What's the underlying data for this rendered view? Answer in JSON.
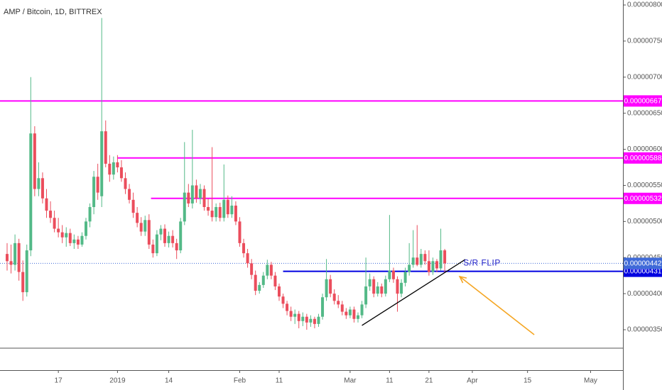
{
  "chart_data": {
    "type": "candlestick",
    "title": "AMP / Bitcoin, 1D, BITTREX",
    "up_color": "#53b987",
    "down_color": "#eb4d5c",
    "xlim": [
      -1.8,
      156.2
    ],
    "ylim": [
      2.94e-06,
      8.069e-06
    ],
    "xticks": [
      {
        "value": 13,
        "label": "17"
      },
      {
        "value": 28,
        "label": "2019"
      },
      {
        "value": 41,
        "label": "14"
      },
      {
        "value": 59,
        "label": "Feb"
      },
      {
        "value": 69,
        "label": "11"
      },
      {
        "value": 87,
        "label": "Mar"
      },
      {
        "value": 97,
        "label": "11"
      },
      {
        "value": 107,
        "label": "21"
      },
      {
        "value": 118,
        "label": "Apr"
      },
      {
        "value": 132,
        "label": "15"
      },
      {
        "value": 148,
        "label": "May"
      }
    ],
    "yticks": [
      {
        "value": 8e-06,
        "label": "0.00000800"
      },
      {
        "value": 7.5e-06,
        "label": "0.00000750"
      },
      {
        "value": 7e-06,
        "label": "0.00000700"
      },
      {
        "value": 6.5e-06,
        "label": "0.00000650"
      },
      {
        "value": 6e-06,
        "label": "0.00000600"
      },
      {
        "value": 5.5e-06,
        "label": "0.00000550"
      },
      {
        "value": 5e-06,
        "label": "0.00000500"
      },
      {
        "value": 4.5e-06,
        "label": "0.00000450"
      },
      {
        "value": 4e-06,
        "label": "0.00000400"
      },
      {
        "value": 3.5e-06,
        "label": "0.00000350"
      }
    ],
    "x": [
      0,
      1,
      2,
      3,
      4,
      5,
      6,
      7,
      8,
      9,
      10,
      11,
      12,
      13,
      14,
      15,
      16,
      17,
      18,
      19,
      20,
      21,
      22,
      23,
      24,
      25,
      26,
      27,
      28,
      29,
      30,
      31,
      32,
      33,
      34,
      35,
      36,
      37,
      38,
      39,
      40,
      41,
      42,
      43,
      44,
      45,
      46,
      47,
      48,
      49,
      50,
      51,
      52,
      53,
      54,
      55,
      56,
      57,
      58,
      59,
      60,
      61,
      62,
      63,
      64,
      65,
      66,
      67,
      68,
      69,
      70,
      71,
      72,
      73,
      74,
      75,
      76,
      77,
      78,
      79,
      80,
      81,
      82,
      83,
      84,
      85,
      86,
      87,
      88,
      89,
      90,
      91,
      92,
      93,
      94,
      95,
      96,
      97,
      98,
      99,
      100,
      101,
      102,
      103,
      104,
      105,
      106,
      107,
      108,
      109,
      110,
      111
    ],
    "open": [
      4.55e-06,
      4.45e-06,
      4.4e-06,
      4.7e-06,
      4.3e-06,
      4.02e-06,
      4.6e-06,
      6.22e-06,
      5.45e-06,
      5.6e-06,
      5.32e-06,
      5.15e-06,
      5.05e-06,
      4.9e-06,
      4.85e-06,
      4.78e-06,
      4.84e-06,
      4.7e-06,
      4.75e-06,
      4.68e-06,
      4.8e-06,
      5e-06,
      5.2e-06,
      5.62e-06,
      5.35e-06,
      6.25e-06,
      5.8e-06,
      5.65e-06,
      5.82e-06,
      5.75e-06,
      5.6e-06,
      5.45e-06,
      5.3e-06,
      5.12e-06,
      4.98e-06,
      4.86e-06,
      5.02e-06,
      4.68e-06,
      4.56e-06,
      4.82e-06,
      4.9e-06,
      4.7e-06,
      4.8e-06,
      4.7e-06,
      4.6e-06,
      5e-06,
      5.4e-06,
      5.25e-06,
      5.5e-06,
      5.32e-06,
      5.45e-06,
      5.2e-06,
      5.15e-06,
      5.06e-06,
      5.2e-06,
      5.05e-06,
      5.3e-06,
      5.1e-06,
      5.22e-06,
      5e-06,
      4.7e-06,
      4.56e-06,
      4.42e-06,
      4.26e-06,
      4.04e-06,
      4.12e-06,
      4.25e-06,
      4.4e-06,
      4.25e-06,
      4.1e-06,
      3.96e-06,
      3.86e-06,
      3.76e-06,
      3.68e-06,
      3.72e-06,
      3.62e-06,
      3.68e-06,
      3.6e-06,
      3.65e-06,
      3.58e-06,
      3.68e-06,
      3.95e-06,
      4.2e-06,
      4e-06,
      3.9e-06,
      3.85e-06,
      3.75e-06,
      3.7e-06,
      3.78e-06,
      3.65e-06,
      3.7e-06,
      3.85e-06,
      4.1e-06,
      4.2e-06,
      4e-06,
      4.1e-06,
      4e-06,
      4.2e-06,
      4.32e-06,
      4.2e-06,
      4e-06,
      4.15e-06,
      4.3e-06,
      4.4e-06,
      4.5e-06,
      4.4e-06,
      4.55e-06,
      4.45e-06,
      4.3e-06,
      4.45e-06,
      4.35e-06,
      4.6e-06
    ],
    "high": [
      4.7e-06,
      4.68e-06,
      4.82e-06,
      4.76e-06,
      4.46e-06,
      4.68e-06,
      7e-06,
      6.32e-06,
      5.82e-06,
      5.68e-06,
      5.45e-06,
      5.28e-06,
      5.15e-06,
      5.05e-06,
      4.95e-06,
      4.92e-06,
      4.9e-06,
      4.82e-06,
      4.8e-06,
      4.85e-06,
      5.05e-06,
      5.25e-06,
      5.7e-06,
      5.8e-06,
      7.82e-06,
      6.4e-06,
      5.92e-06,
      5.9e-06,
      5.92e-06,
      5.85e-06,
      5.68e-06,
      5.52e-06,
      5.4e-06,
      5.2e-06,
      5.06e-06,
      5.08e-06,
      5.1e-06,
      4.75e-06,
      4.88e-06,
      4.95e-06,
      4.96e-06,
      4.86e-06,
      4.88e-06,
      4.76e-06,
      5.05e-06,
      6.1e-06,
      5.52e-06,
      6.27e-06,
      5.58e-06,
      5.52e-06,
      5.5e-06,
      5.32e-06,
      6.03e-06,
      5.25e-06,
      5.26e-06,
      5.79e-06,
      5.36e-06,
      5.35e-06,
      5.28e-06,
      5.06e-06,
      4.76e-06,
      4.62e-06,
      4.48e-06,
      4.32e-06,
      4.16e-06,
      4.3e-06,
      4.47e-06,
      4.44e-06,
      4.3e-06,
      4.14e-06,
      4e-06,
      3.9e-06,
      3.82e-06,
      3.78e-06,
      3.76e-06,
      3.74e-06,
      3.72e-06,
      3.7e-06,
      3.68e-06,
      3.72e-06,
      4e-06,
      4.48e-06,
      4.26e-06,
      4.06e-06,
      3.98e-06,
      3.9e-06,
      3.8e-06,
      3.82e-06,
      3.82e-06,
      3.74e-06,
      3.9e-06,
      4.5e-06,
      4.28e-06,
      4.24e-06,
      4.16e-06,
      4.14e-06,
      4.25e-06,
      5.09e-06,
      4.36e-06,
      4.24e-06,
      4.2e-06,
      4.36e-06,
      4.7e-06,
      4.88e-06,
      4.95e-06,
      4.62e-06,
      4.6e-06,
      4.6e-06,
      4.5e-06,
      4.48e-06,
      4.9e-06,
      4.62e-06
    ],
    "low": [
      4.32e-06,
      4.28e-06,
      4.32e-06,
      4.18e-06,
      3.9e-06,
      3.96e-06,
      4.52e-06,
      5.35e-06,
      5.35e-06,
      5.25e-06,
      5.05e-06,
      4.98e-06,
      4.85e-06,
      4.78e-06,
      4.7e-06,
      4.65e-06,
      4.66e-06,
      4.62e-06,
      4.62e-06,
      4.65e-06,
      4.75e-06,
      4.92e-06,
      5.1e-06,
      5.3e-06,
      5.2e-06,
      5.75e-06,
      5.55e-06,
      5.58e-06,
      5.68e-06,
      5.55e-06,
      5.38e-06,
      5.25e-06,
      5.05e-06,
      4.92e-06,
      4.8e-06,
      4.8e-06,
      4.62e-06,
      4.5e-06,
      4.52e-06,
      4.74e-06,
      4.65e-06,
      4.64e-06,
      4.64e-06,
      4.48e-06,
      4.56e-06,
      4.95e-06,
      5.2e-06,
      5.18e-06,
      5.26e-06,
      5.24e-06,
      5.15e-06,
      5.08e-06,
      5e-06,
      5e-06,
      5e-06,
      5e-06,
      5.05e-06,
      5.05e-06,
      4.95e-06,
      4.65e-06,
      4.5e-06,
      4.36e-06,
      4.2e-06,
      3.98e-06,
      4e-06,
      4.08e-06,
      4.2e-06,
      4.2e-06,
      4.05e-06,
      3.9e-06,
      3.8e-06,
      3.7e-06,
      3.62e-06,
      3.58e-06,
      3.52e-06,
      3.55e-06,
      3.5e-06,
      3.54e-06,
      3.52e-06,
      3.54e-06,
      3.64e-06,
      3.9e-06,
      3.95e-06,
      3.85e-06,
      3.8e-06,
      3.7e-06,
      3.65e-06,
      3.66e-06,
      3.6e-06,
      3.6e-06,
      3.66e-06,
      3.8e-06,
      4.04e-06,
      3.95e-06,
      3.96e-06,
      3.95e-06,
      3.96e-06,
      4.16e-06,
      4.15e-06,
      3.75e-06,
      3.95e-06,
      4.1e-06,
      4.25e-06,
      4.36e-06,
      4.38e-06,
      4.36e-06,
      4.4e-06,
      4.25e-06,
      4.26e-06,
      4.3e-06,
      4.32e-06,
      4.3e-06
    ],
    "close": [
      4.45e-06,
      4.4e-06,
      4.7e-06,
      4.3e-06,
      4.02e-06,
      4.6e-06,
      6.22e-06,
      5.45e-06,
      5.6e-06,
      5.32e-06,
      5.15e-06,
      5.05e-06,
      4.9e-06,
      4.85e-06,
      4.78e-06,
      4.84e-06,
      4.7e-06,
      4.75e-06,
      4.68e-06,
      4.8e-06,
      5e-06,
      5.2e-06,
      5.62e-06,
      5.4e-06,
      6.25e-06,
      5.8e-06,
      5.65e-06,
      5.82e-06,
      5.75e-06,
      5.6e-06,
      5.45e-06,
      5.3e-06,
      5.12e-06,
      4.98e-06,
      4.86e-06,
      5.02e-06,
      4.68e-06,
      4.56e-06,
      4.82e-06,
      4.9e-06,
      4.7e-06,
      4.8e-06,
      4.7e-06,
      4.6e-06,
      5e-06,
      5.4e-06,
      5.25e-06,
      5.5e-06,
      5.32e-06,
      5.45e-06,
      5.2e-06,
      5.15e-06,
      5.06e-06,
      5.2e-06,
      5.05e-06,
      5.3e-06,
      5.1e-06,
      5.22e-06,
      5e-06,
      4.7e-06,
      4.56e-06,
      4.42e-06,
      4.26e-06,
      4.04e-06,
      4.12e-06,
      4.25e-06,
      4.4e-06,
      4.25e-06,
      4.1e-06,
      3.96e-06,
      3.86e-06,
      3.76e-06,
      3.68e-06,
      3.72e-06,
      3.62e-06,
      3.68e-06,
      3.6e-06,
      3.65e-06,
      3.58e-06,
      3.68e-06,
      3.95e-06,
      4.2e-06,
      4e-06,
      3.9e-06,
      3.85e-06,
      3.75e-06,
      3.7e-06,
      3.78e-06,
      3.65e-06,
      3.7e-06,
      3.85e-06,
      4.1e-06,
      4.2e-06,
      4e-06,
      4.1e-06,
      4e-06,
      4.2e-06,
      4.32e-06,
      4.2e-06,
      4e-06,
      4.15e-06,
      4.3e-06,
      4.4e-06,
      4.5e-06,
      4.4e-06,
      4.55e-06,
      4.45e-06,
      4.3e-06,
      4.45e-06,
      4.35e-06,
      4.6e-06,
      4.42e-06
    ],
    "hlines": [
      {
        "value": 6.67e-06,
        "label": "0.00000667",
        "color": "#ff00ff"
      },
      {
        "value": 5.88e-06,
        "label": "0.00000588",
        "color": "#ff00ff",
        "from": 28
      },
      {
        "value": 5.32e-06,
        "label": "0.00000532",
        "color": "#ff00ff",
        "from": 36.5
      },
      {
        "value": 4.31e-06,
        "label": "0.00000431",
        "color": "#0000e0",
        "from": 70
      }
    ],
    "last_price": {
      "value": 4.42e-06,
      "label": "0.00000442",
      "color": "#3f6ad8"
    },
    "trendline": {
      "x": [
        90,
        116.2
      ],
      "y": [
        3.56e-06,
        4.473e-06
      ],
      "color": "#000000"
    },
    "arrow": {
      "x": [
        133.7,
        114.8
      ],
      "y": [
        3.431e-06,
        4.237e-06
      ],
      "color": "#f5a623"
    },
    "annotation": {
      "text": "S/R FLIP",
      "x": 115.7,
      "y": 4.42e-06,
      "color": "#2424c8"
    }
  }
}
